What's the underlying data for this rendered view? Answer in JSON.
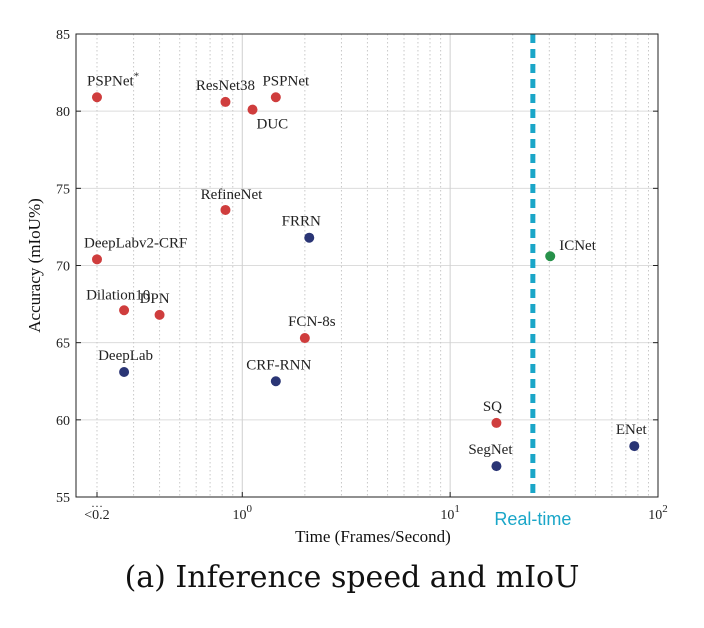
{
  "caption": "(a) Inference speed and mIoU",
  "chart_data": {
    "type": "scatter",
    "xlabel": "Time (Frames/Second)",
    "ylabel": "Accuracy (mIoU%)",
    "xscale": "log",
    "xlim": [
      0.1585,
      100
    ],
    "ylim": [
      55,
      85
    ],
    "yticks": [
      55,
      60,
      65,
      70,
      75,
      80,
      85
    ],
    "xtick_labels": [
      {
        "x": 0.2,
        "label": "<0.2"
      },
      {
        "x": 1,
        "base": "10",
        "exp": "0"
      },
      {
        "x": 10,
        "base": "10",
        "exp": "1"
      },
      {
        "x": 100,
        "base": "10",
        "exp": "2"
      }
    ],
    "grid": true,
    "colors": {
      "red": "#cf3d3d",
      "navy": "#2a3575",
      "green": "#27914a",
      "realtime": "#1aa6c8"
    },
    "realtime_line": {
      "x": 25,
      "label": "Real-time"
    },
    "points": [
      {
        "name": "PSPNet",
        "star": "*",
        "x": 0.2,
        "y": 80.9,
        "color": "red"
      },
      {
        "name": "ResNet38",
        "x": 0.83,
        "y": 80.6,
        "color": "red"
      },
      {
        "name": "DUC",
        "x": 1.12,
        "y": 80.1,
        "color": "red"
      },
      {
        "name": "PSPNet",
        "x": 1.45,
        "y": 80.9,
        "color": "red"
      },
      {
        "name": "RefineNet",
        "x": 0.83,
        "y": 73.6,
        "color": "red"
      },
      {
        "name": "FRRN",
        "x": 2.1,
        "y": 71.8,
        "color": "navy"
      },
      {
        "name": "DeepLabv2-CRF",
        "x": 0.2,
        "y": 70.4,
        "color": "red"
      },
      {
        "name": "ICNet",
        "x": 30.3,
        "y": 70.6,
        "color": "green"
      },
      {
        "name": "Dilation10",
        "x": 0.27,
        "y": 67.1,
        "color": "red"
      },
      {
        "name": "DPN",
        "x": 0.4,
        "y": 66.8,
        "color": "red"
      },
      {
        "name": "FCN-8s",
        "x": 2.0,
        "y": 65.3,
        "color": "red"
      },
      {
        "name": "DeepLab",
        "x": 0.27,
        "y": 63.1,
        "color": "navy"
      },
      {
        "name": "CRF-RNN",
        "x": 1.45,
        "y": 62.5,
        "color": "navy"
      },
      {
        "name": "SQ",
        "x": 16.7,
        "y": 59.8,
        "color": "red"
      },
      {
        "name": "SegNet",
        "x": 16.7,
        "y": 57.0,
        "color": "navy"
      },
      {
        "name": "ENet",
        "x": 76.9,
        "y": 58.3,
        "color": "navy"
      }
    ]
  }
}
